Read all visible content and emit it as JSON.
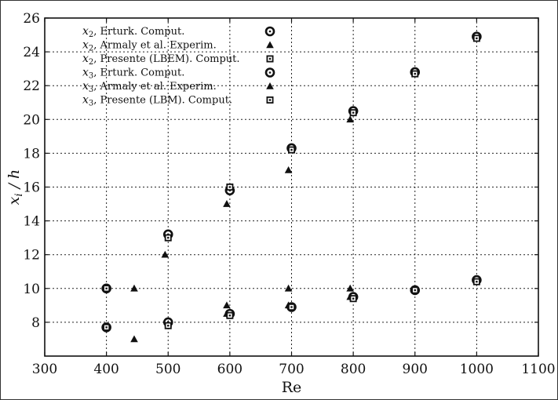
{
  "chart_data": {
    "type": "scatter",
    "xlabel": "Re",
    "ylabel_main": "x",
    "ylabel_sub": "i",
    "ylabel_rest": " / h",
    "xlim": [
      300,
      1100
    ],
    "ylim": [
      6,
      26
    ],
    "xticks": [
      300,
      400,
      500,
      600,
      700,
      800,
      900,
      1000,
      1100
    ],
    "yticks": [
      8,
      10,
      12,
      14,
      16,
      18,
      20,
      22,
      24,
      26
    ],
    "grid": true,
    "legend_position": "top-left",
    "series": [
      {
        "key": "x2-erturk",
        "label_main": "x",
        "label_sub": "2",
        "label_rest": ", Erturk. Comput.",
        "marker": "circle-dot",
        "points": [
          [
            400,
            7.7
          ],
          [
            500,
            8.0
          ],
          [
            600,
            8.5
          ],
          [
            700,
            8.9
          ],
          [
            800,
            9.5
          ],
          [
            900,
            9.9
          ],
          [
            1000,
            10.5
          ]
        ]
      },
      {
        "key": "x2-armaly",
        "label_main": "x",
        "label_sub": "2",
        "label_rest": ", Armaly et al. Experim.",
        "marker": "triangle",
        "points": [
          [
            445,
            7.0
          ],
          [
            500,
            7.9
          ],
          [
            595,
            8.5
          ],
          [
            695,
            9.0
          ],
          [
            795,
            9.5
          ]
        ]
      },
      {
        "key": "x2-presente",
        "label_main": "x",
        "label_sub": "2",
        "label_rest": ", Presente (LBEM). Comput.",
        "marker": "square",
        "points": [
          [
            400,
            7.7
          ],
          [
            500,
            7.8
          ],
          [
            600,
            8.4
          ],
          [
            700,
            8.9
          ],
          [
            800,
            9.4
          ],
          [
            900,
            9.9
          ],
          [
            1000,
            10.4
          ]
        ]
      },
      {
        "key": "x3-erturk",
        "label_main": "x",
        "label_sub": "3",
        "label_rest": ", Erturk. Comput.",
        "marker": "circle-dot",
        "points": [
          [
            400,
            10.0
          ],
          [
            500,
            13.2
          ],
          [
            600,
            15.8
          ],
          [
            700,
            18.3
          ],
          [
            800,
            20.5
          ],
          [
            900,
            22.8
          ],
          [
            1000,
            24.9
          ]
        ]
      },
      {
        "key": "x3-armaly",
        "label_main": "x",
        "label_sub": "3",
        "label_rest": ", Armaly et al. Experim.",
        "marker": "triangle",
        "points": [
          [
            445,
            10.0
          ],
          [
            495,
            12.0
          ],
          [
            595,
            15.0
          ],
          [
            695,
            17.0
          ],
          [
            795,
            20.0
          ],
          [
            595,
            9.0
          ],
          [
            695,
            10.0
          ],
          [
            795,
            10.0
          ]
        ]
      },
      {
        "key": "x3-presente",
        "label_main": "x",
        "label_sub": "3",
        "label_rest": ", Presente (LBM). Comput.",
        "marker": "square",
        "points": [
          [
            400,
            10.0
          ],
          [
            500,
            13.0
          ],
          [
            600,
            16.0
          ],
          [
            700,
            18.2
          ],
          [
            800,
            20.4
          ],
          [
            900,
            22.7
          ],
          [
            1000,
            24.8
          ]
        ]
      }
    ]
  }
}
